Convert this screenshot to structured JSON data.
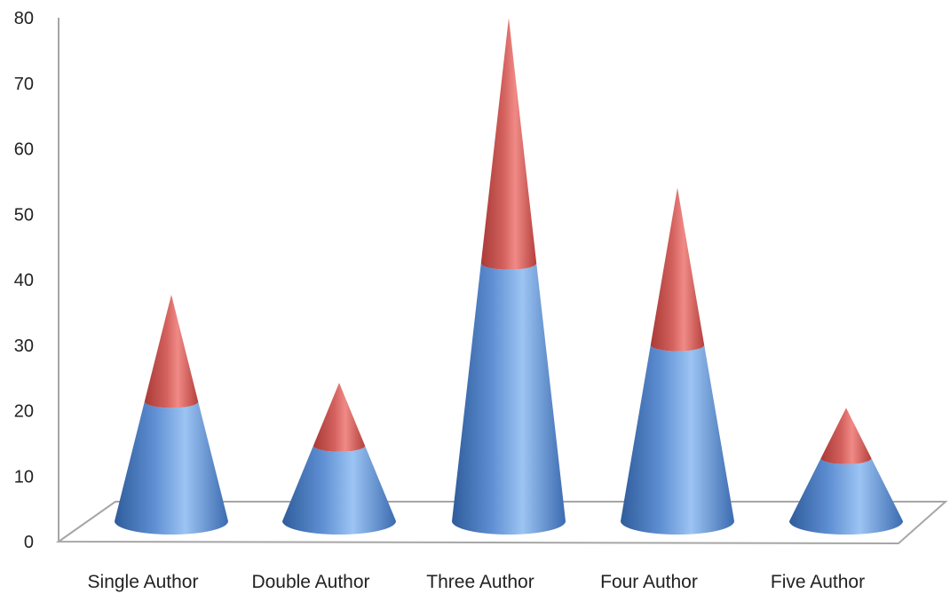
{
  "chart_data": {
    "type": "bar",
    "style": "3d-stacked-cone",
    "title": "",
    "xlabel": "",
    "ylabel": "",
    "categories": [
      "Single Author",
      "Double Author",
      "Three Author",
      "Four Author",
      "Five Author"
    ],
    "series": [
      {
        "values": [
          19,
          12,
          41,
          28,
          10
        ]
      },
      {
        "values": [
          17,
          10,
          39,
          25,
          8
        ]
      }
    ],
    "totals": [
      36,
      22,
      80,
      53,
      18
    ],
    "ylim": [
      0,
      80
    ],
    "yticks": [
      0,
      10,
      20,
      30,
      40,
      50,
      60,
      70,
      80
    ],
    "grid": false,
    "legend": "none",
    "colors": {
      "lower": "#4F81BD",
      "upper": "#C0504D",
      "axis": "#A6A6A6"
    }
  }
}
